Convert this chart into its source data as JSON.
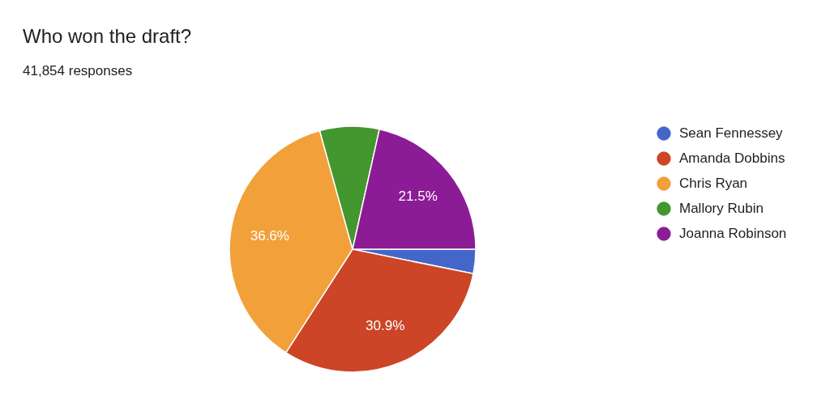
{
  "chart_data": {
    "type": "pie",
    "title": "Who won the draft?",
    "subtitle": "41,854 responses",
    "categories": [
      "Sean Fennessey",
      "Amanda Dobbins",
      "Chris Ryan",
      "Mallory Rubin",
      "Joanna Robinson"
    ],
    "values": [
      3.2,
      30.9,
      36.6,
      7.8,
      21.5
    ],
    "colors": [
      "#4267c9",
      "#cc4526",
      "#f1a03a",
      "#44962f",
      "#8b1c96"
    ],
    "value_labels": [
      null,
      "30.9%",
      "36.6%",
      null,
      "21.5%"
    ],
    "legend": "right"
  }
}
